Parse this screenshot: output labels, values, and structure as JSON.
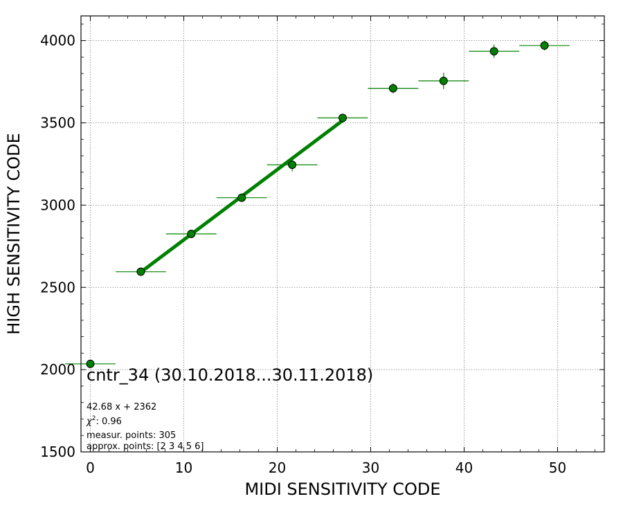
{
  "chart_data": {
    "type": "scatter",
    "xlabel": "MIDI SENSITIVITY CODE",
    "ylabel": "HIGH SENSITIVITY CODE",
    "xlim": [
      -1,
      55
    ],
    "ylim": [
      1500,
      4150
    ],
    "x_ticks": [
      0,
      10,
      20,
      30,
      40,
      50
    ],
    "y_ticks": [
      1500,
      2000,
      2500,
      3000,
      3500,
      4000
    ],
    "grid": true,
    "points": [
      {
        "x": 0.0,
        "y": 2035,
        "xerr": 2.7,
        "yerr": 8
      },
      {
        "x": 5.4,
        "y": 2595,
        "xerr": 2.7,
        "yerr": 10
      },
      {
        "x": 10.8,
        "y": 2825,
        "xerr": 2.7,
        "yerr": 15
      },
      {
        "x": 16.2,
        "y": 3045,
        "xerr": 2.7,
        "yerr": 12
      },
      {
        "x": 21.6,
        "y": 3245,
        "xerr": 2.7,
        "yerr": 40
      },
      {
        "x": 27.0,
        "y": 3530,
        "xerr": 2.7,
        "yerr": 20
      },
      {
        "x": 32.4,
        "y": 3710,
        "xerr": 2.7,
        "yerr": 30
      },
      {
        "x": 37.8,
        "y": 3755,
        "xerr": 2.7,
        "yerr": 50
      },
      {
        "x": 43.2,
        "y": 3935,
        "xerr": 2.7,
        "yerr": 40
      },
      {
        "x": 48.6,
        "y": 3970,
        "xerr": 2.7,
        "yerr": 30
      }
    ],
    "fit": {
      "slope": 42.68,
      "intercept": 2362,
      "x_start": 5.4,
      "x_end": 27.0
    },
    "colors": {
      "marker": "#008000",
      "fit": "#008000",
      "grid": "#808080"
    },
    "annotations": {
      "title": "cntr_34 (30.10.2018...30.11.2018)",
      "equation": "42.68 x + 2362",
      "chi_label": "χ",
      "chi_value": ": 0.96",
      "measur_points": "measur. points: 305",
      "approx_points": "approx. points: [2 3 4 5 6]"
    }
  }
}
